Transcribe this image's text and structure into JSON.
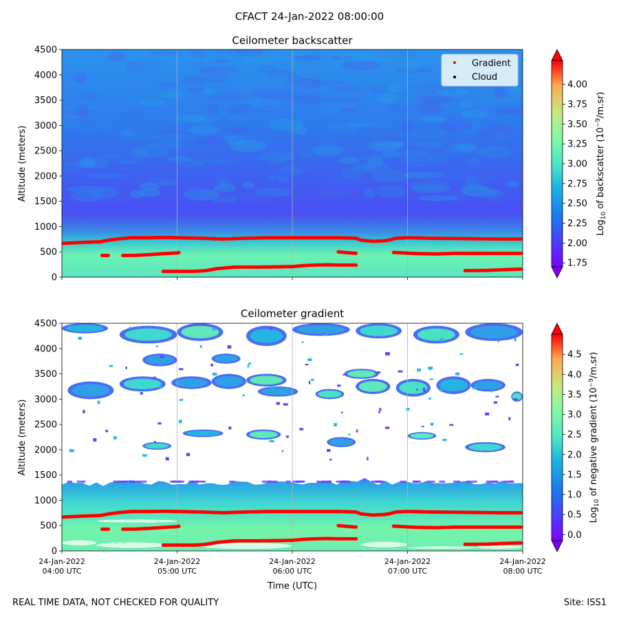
{
  "figure": {
    "title": "CFACT 24-Jan-2022 08:00:00",
    "note": "REAL TIME DATA, NOT CHECKED FOR QUALITY",
    "site": "Site: ISS1"
  },
  "chart_data": [
    {
      "type": "heatmap",
      "title": "Ceilometer backscatter",
      "ylabel": "Altitude (meters)",
      "xlabel": "",
      "ylim": [
        0,
        4500
      ],
      "yticks": [
        0,
        500,
        1000,
        1500,
        2000,
        2500,
        3000,
        3500,
        4000,
        4500
      ],
      "xlim_hours_utc": [
        4,
        8
      ],
      "xtick_hours_utc": [
        4,
        5,
        6,
        7,
        8
      ],
      "grid": "vertical at hourly ticks",
      "colormap": "rainbow",
      "colorbar": {
        "label": "Log10 of backscatter (10-9/m.sr)",
        "range": [
          1.7,
          4.3
        ],
        "ticks": [
          "1.75",
          "2.00",
          "2.25",
          "2.50",
          "2.75",
          "3.00",
          "3.25",
          "3.50",
          "3.75",
          "4.00"
        ],
        "extend": "both"
      },
      "legend": {
        "placement": "top-right",
        "entries": [
          {
            "name": "Gradient",
            "color": "#ff0000"
          },
          {
            "name": "Cloud",
            "color": "#000000"
          }
        ]
      },
      "field_description": {
        "aloft_level_log10": 2.35,
        "boundary_layer_top_m": 780,
        "boundary_layer_level_log10": 2.8
      }
    },
    {
      "type": "heatmap",
      "title": "Ceilometer gradient",
      "ylabel": "Altitude (meters)",
      "xlabel": "Time (UTC)",
      "ylim": [
        0,
        4500
      ],
      "yticks": [
        0,
        500,
        1000,
        1500,
        2000,
        2500,
        3000,
        3500,
        4000,
        4500
      ],
      "xlim_hours_utc": [
        4,
        8
      ],
      "xtick_hours_utc": [
        4,
        5,
        6,
        7,
        8
      ],
      "xtick_labels": [
        [
          "24-Jan-2022",
          "04:00 UTC"
        ],
        [
          "24-Jan-2022",
          "05:00 UTC"
        ],
        [
          "24-Jan-2022",
          "06:00 UTC"
        ],
        [
          "24-Jan-2022",
          "07:00 UTC"
        ],
        [
          "24-Jan-2022",
          "08:00 UTC"
        ]
      ],
      "grid": "vertical at hourly ticks",
      "colormap": "rainbow",
      "colorbar": {
        "label": "Log10 of negative gradient (10-9/m.sr)",
        "range": [
          -0.15,
          5.0
        ],
        "ticks": [
          "0.0",
          "0.5",
          "1.0",
          "1.5",
          "2.0",
          "2.5",
          "3.0",
          "3.5",
          "4.0",
          "4.5"
        ],
        "extend": "both"
      },
      "field_description": {
        "lower_band_top_m": 1350,
        "lower_band_level_log10": 1.8,
        "cloud_patches_altitude_range_m": [
          1900,
          4500
        ]
      }
    }
  ],
  "gradient_points": {
    "name": "Gradient",
    "color": "#ff0000",
    "segments": [
      {
        "t": [
          4.0,
          4.2,
          4.33,
          4.4,
          4.5,
          4.6,
          4.75,
          4.9,
          5.0,
          5.2,
          5.4,
          5.6,
          5.8,
          6.0,
          6.2,
          6.4,
          6.55,
          6.6,
          6.7,
          6.8,
          6.85,
          6.9,
          7.0,
          7.2,
          7.4,
          7.6,
          7.8,
          8.0
        ],
        "alt": [
          670,
          690,
          700,
          730,
          760,
          780,
          780,
          785,
          780,
          770,
          755,
          770,
          780,
          780,
          780,
          780,
          770,
          730,
          710,
          720,
          740,
          770,
          780,
          770,
          765,
          760,
          755,
          755
        ]
      },
      {
        "t": [
          4.35,
          4.42
        ],
        "alt": [
          430,
          430
        ]
      },
      {
        "t": [
          4.53,
          4.62,
          4.75,
          4.88,
          5.0,
          5.03
        ],
        "alt": [
          430,
          430,
          445,
          465,
          480,
          495
        ]
      },
      {
        "t": [
          4.88,
          5.0,
          5.15,
          5.25,
          5.35,
          5.5,
          5.7,
          5.9,
          6.0,
          6.1,
          6.2,
          6.3,
          6.4,
          6.57
        ],
        "alt": [
          115,
          115,
          115,
          130,
          170,
          200,
          200,
          205,
          210,
          230,
          240,
          245,
          240,
          240
        ]
      },
      {
        "t": [
          6.4,
          6.5,
          6.57
        ],
        "alt": [
          500,
          480,
          470
        ]
      },
      {
        "t": [
          6.88,
          7.0,
          7.1,
          7.25,
          7.4
        ],
        "alt": [
          490,
          475,
          465,
          460,
          470
        ]
      },
      {
        "t": [
          7.4,
          7.6,
          7.8,
          8.0
        ],
        "alt": [
          470,
          470,
          470,
          470
        ]
      },
      {
        "t": [
          7.5,
          7.7,
          7.85,
          8.0
        ],
        "alt": [
          130,
          135,
          150,
          160
        ]
      }
    ]
  }
}
